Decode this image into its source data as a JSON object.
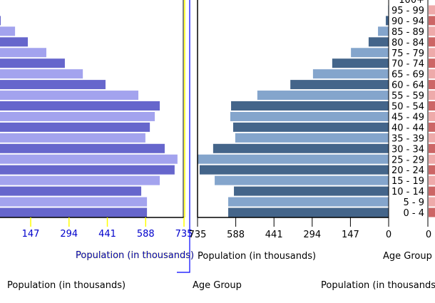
{
  "chart_data": [
    {
      "type": "bar",
      "orientation": "horizontal",
      "categories": [
        "0 - 4",
        "5 - 9",
        "10 - 14",
        "15 - 19",
        "20 - 24",
        "25 - 29",
        "30 - 34",
        "35 - 39",
        "40 - 44",
        "45 - 49",
        "50 - 54",
        "55 - 59",
        "60 - 64",
        "65 - 69",
        "70 - 74",
        "75 - 79",
        "80 - 84",
        "85 - 89",
        "90 - 94"
      ],
      "values": [
        593,
        593,
        571,
        642,
        699,
        710,
        661,
        587,
        604,
        623,
        642,
        560,
        434,
        347,
        278,
        207,
        136,
        87,
        32
      ],
      "xlabel": "Population (in thousands)",
      "xticks": [
        "147",
        "294",
        "441",
        "588",
        "735"
      ],
      "xlim": [
        0,
        735
      ],
      "colors": [
        "#6666cc",
        "#a3a3ee"
      ]
    },
    {
      "type": "bar",
      "orientation": "horizontal-reversed",
      "categories": [
        "0 - 4",
        "5 - 9",
        "10 - 14",
        "15 - 19",
        "20 - 24",
        "25 - 29",
        "30 - 34",
        "35 - 39",
        "40 - 44",
        "45 - 49",
        "50 - 54",
        "55 - 59",
        "60 - 64",
        "65 - 69",
        "70 - 74",
        "75 - 79",
        "80 - 84",
        "85 - 89",
        "90 - 94",
        "95 - 99",
        "100+"
      ],
      "values": [
        617,
        617,
        595,
        669,
        727,
        740,
        675,
        590,
        598,
        609,
        606,
        505,
        378,
        291,
        217,
        145,
        77,
        41,
        11,
        2,
        0
      ],
      "xlabel": "Population (in thousands)",
      "ylabel": "Age Group",
      "xticks": [
        "735",
        "588",
        "441",
        "294",
        "147",
        "0"
      ],
      "xlim": [
        735,
        0
      ],
      "colors": [
        "#44658a",
        "#84a5cc"
      ]
    },
    {
      "type": "bar",
      "orientation": "horizontal",
      "xlabel": "Population (in thousands)",
      "xticks": [
        "0"
      ],
      "colors": [
        "#cc6666",
        "#eeaaaa"
      ]
    }
  ],
  "footer": {
    "left_label": "Population (in thousands)",
    "middle_label": "Age Group",
    "right_label": "Population (in thousands)"
  }
}
